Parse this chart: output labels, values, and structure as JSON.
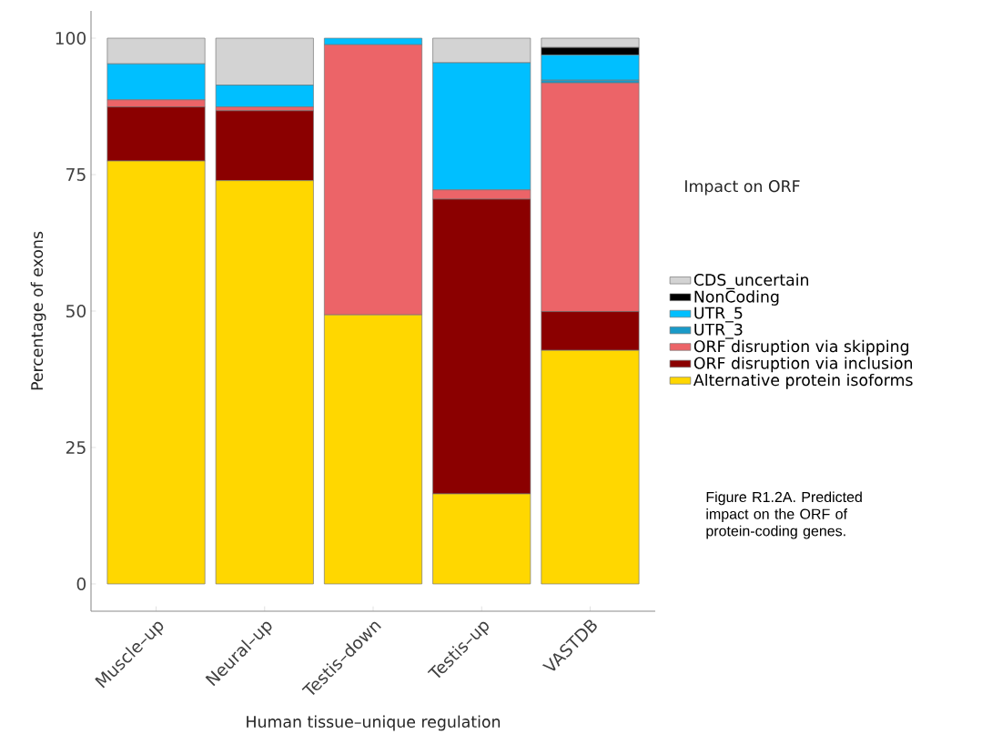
{
  "chart_data": {
    "type": "bar",
    "stacked": true,
    "xlabel": "Human tissue–unique regulation",
    "ylabel": "Percentage of exons",
    "categories": [
      "Muscle–up",
      "Neural–up",
      "Testis–down",
      "Testis–up",
      "VASTDB"
    ],
    "series": [
      {
        "name": "Alternative protein isoforms",
        "color": "#ffd700",
        "values": [
          77.5,
          73.9,
          49.3,
          16.5,
          42.8
        ]
      },
      {
        "name": "ORF disruption via inclusion",
        "color": "#8b0000",
        "values": [
          9.9,
          12.8,
          0,
          54.0,
          7.1
        ]
      },
      {
        "name": "ORF disruption via skipping",
        "color": "#ec6468",
        "values": [
          1.3,
          0.7,
          49.5,
          1.7,
          41.9
        ]
      },
      {
        "name": "UTR_3",
        "color": "#1a9ac8",
        "values": [
          0,
          0,
          0,
          0,
          0.5
        ]
      },
      {
        "name": "UTR_5",
        "color": "#00bfff",
        "values": [
          6.6,
          4.0,
          1.2,
          23.3,
          4.6
        ]
      },
      {
        "name": "NonCoding",
        "color": "#000000",
        "values": [
          0,
          0,
          0,
          0,
          1.4
        ]
      },
      {
        "name": "CDS_uncertain",
        "color": "#d3d3d3",
        "values": [
          4.7,
          8.6,
          0,
          4.5,
          1.7
        ]
      }
    ],
    "ylim": [
      -5,
      105
    ],
    "yticks": [
      0,
      25,
      50,
      75,
      100
    ],
    "grid": false,
    "legend": "right",
    "legend_title": "Impact on ORF",
    "annotations": [
      "Figure R1.2A. Predicted impact on the ORF of protein-coding genes."
    ]
  }
}
